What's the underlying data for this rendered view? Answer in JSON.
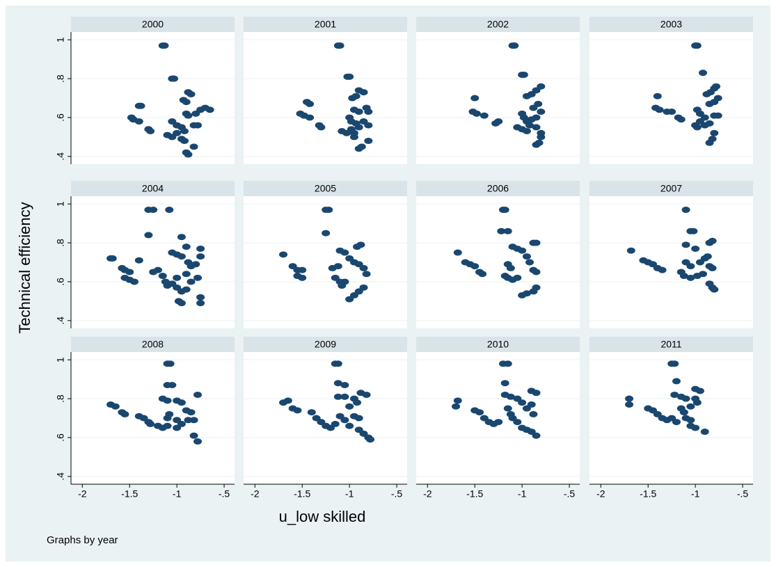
{
  "ylabel": "Technical efficiency",
  "xlabel": "u_low skilled",
  "note": "Graphs by year",
  "axes": {
    "xlim": [
      -2.12,
      -0.39
    ],
    "ylim": [
      0.36,
      1.04
    ],
    "xticks": [
      -2,
      -1.5,
      -1,
      {
        "value": -0.5,
        "label": "-.5"
      }
    ],
    "yticks": [
      {
        "value": 0.4,
        "label": ".4"
      },
      {
        "value": 0.6,
        "label": ".6"
      },
      {
        "value": 0.8,
        "label": ".8"
      },
      1
    ],
    "grid": true,
    "color": "#1a476f"
  },
  "chart_data": [
    {
      "type": "scatter",
      "title": "2000",
      "x": [
        -1.15,
        -1.13,
        -1.05,
        -1.03,
        -1.4,
        -1.38,
        -1.48,
        -1.46,
        -1.4,
        -1.3,
        -1.28,
        -1.1,
        -1.05,
        -1.0,
        -0.95,
        -1.05,
        -1.0,
        -0.95,
        -0.92,
        -0.93,
        -0.9,
        -0.88,
        -0.85,
        -0.9,
        -0.88,
        -0.8,
        -0.75,
        -0.7,
        -0.65,
        -0.82,
        -0.78,
        -0.9,
        -0.88,
        -0.82,
        -0.92
      ],
      "y": [
        0.97,
        0.97,
        0.8,
        0.8,
        0.66,
        0.66,
        0.6,
        0.59,
        0.58,
        0.54,
        0.53,
        0.51,
        0.5,
        0.52,
        0.49,
        0.58,
        0.56,
        0.55,
        0.53,
        0.69,
        0.68,
        0.73,
        0.72,
        0.62,
        0.61,
        0.62,
        0.64,
        0.65,
        0.64,
        0.56,
        0.56,
        0.42,
        0.41,
        0.45,
        0.48
      ]
    },
    {
      "type": "scatter",
      "title": "2001",
      "x": [
        -1.12,
        -1.1,
        -1.02,
        -1.0,
        -1.45,
        -1.42,
        -1.52,
        -1.48,
        -1.42,
        -1.32,
        -1.3,
        -1.08,
        -1.03,
        -0.98,
        -0.95,
        -1.0,
        -0.98,
        -0.93,
        -0.9,
        -0.97,
        -0.93,
        -0.9,
        -0.85,
        -0.95,
        -0.9,
        -0.82,
        -0.8,
        -0.85,
        -0.8,
        -0.9,
        -0.87,
        -0.8,
        -0.95
      ],
      "y": [
        0.97,
        0.97,
        0.81,
        0.81,
        0.68,
        0.67,
        0.62,
        0.61,
        0.6,
        0.56,
        0.55,
        0.53,
        0.52,
        0.54,
        0.52,
        0.6,
        0.58,
        0.57,
        0.55,
        0.7,
        0.71,
        0.74,
        0.73,
        0.64,
        0.63,
        0.65,
        0.63,
        0.58,
        0.56,
        0.44,
        0.45,
        0.48,
        0.5
      ]
    },
    {
      "type": "scatter",
      "title": "2002",
      "x": [
        -1.1,
        -1.08,
        -1.0,
        -0.98,
        -1.5,
        -1.52,
        -1.48,
        -1.4,
        -1.28,
        -1.25,
        -1.05,
        -1.0,
        -0.95,
        -0.92,
        -1.0,
        -0.98,
        -0.95,
        -0.9,
        -0.85,
        -0.95,
        -0.9,
        -0.85,
        -0.8,
        -0.88,
        -0.83,
        -0.8,
        -0.85,
        -0.8,
        -0.85,
        -0.82,
        -0.8
      ],
      "y": [
        0.97,
        0.97,
        0.82,
        0.82,
        0.7,
        0.63,
        0.62,
        0.61,
        0.57,
        0.58,
        0.55,
        0.54,
        0.53,
        0.56,
        0.62,
        0.6,
        0.58,
        0.59,
        0.6,
        0.71,
        0.72,
        0.74,
        0.76,
        0.65,
        0.67,
        0.63,
        0.55,
        0.52,
        0.46,
        0.47,
        0.5
      ]
    },
    {
      "type": "scatter",
      "title": "2003",
      "x": [
        -1.0,
        -0.98,
        -0.92,
        -1.4,
        -1.42,
        -1.38,
        -1.3,
        -1.25,
        -1.18,
        -1.15,
        -1.0,
        -0.98,
        -0.95,
        -0.9,
        -0.85,
        -0.98,
        -0.95,
        -0.9,
        -0.88,
        -0.84,
        -0.8,
        -0.78,
        -0.85,
        -0.8,
        -0.76,
        -0.8,
        -0.76,
        -0.8,
        -0.82,
        -0.85
      ],
      "y": [
        0.97,
        0.97,
        0.83,
        0.71,
        0.65,
        0.64,
        0.63,
        0.63,
        0.6,
        0.59,
        0.56,
        0.55,
        0.58,
        0.56,
        0.57,
        0.64,
        0.62,
        0.6,
        0.72,
        0.73,
        0.75,
        0.76,
        0.67,
        0.68,
        0.7,
        0.61,
        0.61,
        0.52,
        0.49,
        0.47
      ]
    },
    {
      "type": "scatter",
      "title": "2004",
      "x": [
        -1.7,
        -1.68,
        -1.58,
        -1.55,
        -1.5,
        -1.55,
        -1.5,
        -1.45,
        -1.4,
        -1.3,
        -1.25,
        -1.3,
        -1.25,
        -1.2,
        -1.15,
        -1.12,
        -1.1,
        -1.05,
        -1.0,
        -0.95,
        -0.9,
        -1.08,
        -1.05,
        -1.0,
        -0.95,
        -0.95,
        -0.9,
        -0.88,
        -0.85,
        -0.8,
        -0.75,
        -0.75,
        -0.78,
        -0.75,
        -0.75,
        -0.98,
        -0.95,
        -0.85,
        -0.9,
        -1.0
      ],
      "y": [
        0.72,
        0.72,
        0.67,
        0.66,
        0.65,
        0.62,
        0.61,
        0.6,
        0.71,
        0.97,
        0.97,
        0.84,
        0.65,
        0.66,
        0.63,
        0.6,
        0.58,
        0.59,
        0.57,
        0.55,
        0.56,
        0.97,
        0.75,
        0.74,
        0.73,
        0.83,
        0.78,
        0.7,
        0.68,
        0.69,
        0.73,
        0.77,
        0.62,
        0.52,
        0.49,
        0.5,
        0.49,
        0.6,
        0.64,
        0.62
      ]
    },
    {
      "type": "scatter",
      "title": "2005",
      "x": [
        -1.7,
        -1.6,
        -1.55,
        -1.5,
        -1.55,
        -1.5,
        -1.25,
        -1.22,
        -1.25,
        -1.18,
        -1.12,
        -1.15,
        -1.1,
        -1.08,
        -1.05,
        -1.1,
        -1.05,
        -1.0,
        -0.95,
        -0.92,
        -0.88,
        -0.9,
        -0.85,
        -0.82,
        -0.85,
        -0.9,
        -0.95,
        -1.0
      ],
      "y": [
        0.74,
        0.68,
        0.66,
        0.66,
        0.63,
        0.62,
        0.97,
        0.97,
        0.85,
        0.67,
        0.68,
        0.62,
        0.6,
        0.58,
        0.6,
        0.76,
        0.75,
        0.72,
        0.7,
        0.78,
        0.79,
        0.69,
        0.67,
        0.64,
        0.57,
        0.55,
        0.53,
        0.51
      ]
    },
    {
      "type": "scatter",
      "title": "2006",
      "x": [
        -1.68,
        -1.6,
        -1.55,
        -1.5,
        -1.45,
        -1.42,
        -1.2,
        -1.18,
        -1.22,
        -1.15,
        -1.15,
        -1.12,
        -1.18,
        -1.15,
        -1.1,
        -1.05,
        -1.1,
        -1.05,
        -1.0,
        -0.95,
        -0.92,
        -0.88,
        -0.85,
        -0.88,
        -0.85,
        -0.85,
        -0.88,
        -0.95,
        -1.0
      ],
      "y": [
        0.75,
        0.7,
        0.69,
        0.68,
        0.65,
        0.64,
        0.97,
        0.97,
        0.86,
        0.86,
        0.69,
        0.67,
        0.63,
        0.62,
        0.61,
        0.62,
        0.78,
        0.77,
        0.76,
        0.73,
        0.7,
        0.8,
        0.8,
        0.66,
        0.65,
        0.57,
        0.55,
        0.54,
        0.53
      ]
    },
    {
      "type": "scatter",
      "title": "2007",
      "x": [
        -1.68,
        -1.55,
        -1.5,
        -1.45,
        -1.4,
        -1.35,
        -1.1,
        -1.05,
        -1.02,
        -1.1,
        -1.0,
        -1.1,
        -1.05,
        -1.15,
        -1.12,
        -1.05,
        -0.98,
        -0.95,
        -0.9,
        -0.87,
        -0.85,
        -0.82,
        -0.85,
        -0.82,
        -0.85,
        -0.82,
        -0.8,
        -0.92
      ],
      "y": [
        0.76,
        0.71,
        0.7,
        0.69,
        0.67,
        0.66,
        0.97,
        0.86,
        0.86,
        0.79,
        0.77,
        0.7,
        0.68,
        0.65,
        0.63,
        0.62,
        0.63,
        0.7,
        0.72,
        0.73,
        0.8,
        0.81,
        0.68,
        0.67,
        0.59,
        0.57,
        0.56,
        0.64
      ]
    },
    {
      "type": "scatter",
      "title": "2008",
      "x": [
        -1.7,
        -1.65,
        -1.58,
        -1.55,
        -1.4,
        -1.35,
        -1.3,
        -1.28,
        -1.1,
        -1.07,
        -1.1,
        -1.05,
        -1.15,
        -1.1,
        -1.2,
        -1.15,
        -1.1,
        -1.1,
        -1.08,
        -1.0,
        -0.95,
        -1.0,
        -0.95,
        -1.0,
        -0.9,
        -0.85,
        -0.88,
        -0.82,
        -0.78,
        -0.82,
        -0.78
      ],
      "y": [
        0.77,
        0.76,
        0.73,
        0.72,
        0.71,
        0.7,
        0.68,
        0.67,
        0.98,
        0.98,
        0.87,
        0.87,
        0.8,
        0.79,
        0.66,
        0.65,
        0.66,
        0.7,
        0.72,
        0.79,
        0.78,
        0.69,
        0.67,
        0.65,
        0.74,
        0.73,
        0.69,
        0.69,
        0.82,
        0.61,
        0.58
      ]
    },
    {
      "type": "scatter",
      "title": "2009",
      "x": [
        -1.7,
        -1.65,
        -1.6,
        -1.55,
        -1.4,
        -1.35,
        -1.3,
        -1.25,
        -1.15,
        -1.12,
        -1.12,
        -1.05,
        -1.12,
        -1.05,
        -1.15,
        -1.1,
        -1.05,
        -1.0,
        -0.95,
        -0.92,
        -1.0,
        -0.95,
        -0.9,
        -0.88,
        -0.82,
        -0.9,
        -0.85,
        -0.8,
        -0.78,
        -1.2
      ],
      "y": [
        0.78,
        0.79,
        0.75,
        0.74,
        0.73,
        0.7,
        0.68,
        0.66,
        0.98,
        0.98,
        0.88,
        0.87,
        0.81,
        0.81,
        0.67,
        0.71,
        0.69,
        0.66,
        0.8,
        0.78,
        0.76,
        0.71,
        0.7,
        0.83,
        0.82,
        0.64,
        0.62,
        0.6,
        0.59,
        0.65
      ]
    },
    {
      "type": "scatter",
      "title": "2010",
      "x": [
        -1.68,
        -1.7,
        -1.5,
        -1.45,
        -1.4,
        -1.35,
        -1.3,
        -1.25,
        -1.2,
        -1.15,
        -1.18,
        -1.18,
        -1.12,
        -1.05,
        -1.15,
        -1.12,
        -1.1,
        -1.05,
        -1.0,
        -0.95,
        -0.9,
        -0.85,
        -0.9,
        -1.0,
        -0.95,
        -0.9,
        -0.85,
        -0.88
      ],
      "y": [
        0.79,
        0.76,
        0.74,
        0.73,
        0.7,
        0.68,
        0.67,
        0.68,
        0.98,
        0.98,
        0.88,
        0.82,
        0.81,
        0.8,
        0.75,
        0.72,
        0.7,
        0.68,
        0.78,
        0.75,
        0.84,
        0.83,
        0.77,
        0.65,
        0.64,
        0.63,
        0.61,
        0.72
      ]
    },
    {
      "type": "scatter",
      "title": "2011",
      "x": [
        -1.7,
        -1.7,
        -1.5,
        -1.45,
        -1.4,
        -1.35,
        -1.3,
        -1.25,
        -1.25,
        -1.22,
        -1.2,
        -1.22,
        -1.15,
        -1.1,
        -1.15,
        -1.12,
        -1.1,
        -1.05,
        -1.0,
        -0.98,
        -1.0,
        -0.95,
        -1.05,
        -1.0,
        -0.9,
        -1.05,
        -1.2
      ],
      "y": [
        0.8,
        0.77,
        0.75,
        0.74,
        0.72,
        0.7,
        0.69,
        0.7,
        0.98,
        0.98,
        0.89,
        0.82,
        0.81,
        0.8,
        0.75,
        0.73,
        0.7,
        0.69,
        0.8,
        0.78,
        0.85,
        0.84,
        0.66,
        0.65,
        0.63,
        0.76,
        0.68
      ]
    }
  ]
}
